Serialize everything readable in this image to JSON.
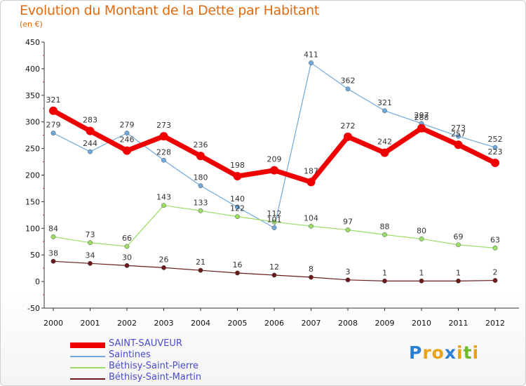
{
  "title": "Evolution du Montant de la Dette par Habitant",
  "subtitle": "(en €)",
  "logo": {
    "letters": [
      "P",
      "r",
      "o",
      "x",
      "i",
      "t",
      "i"
    ],
    "colors": [
      "#2a7fd4",
      "#e8a21a",
      "#e8a21a",
      "#2a7fd4",
      "#e8a21a",
      "#6cbb2a",
      "#e8a21a"
    ]
  },
  "chart_data": {
    "type": "line",
    "title": "Evolution du Montant de la Dette par Habitant",
    "ylabel": "(en €)",
    "x": [
      "2000",
      "2001",
      "2002",
      "2003",
      "2004",
      "2005",
      "2006",
      "2007",
      "2008",
      "2009",
      "2010",
      "2011",
      "2012"
    ],
    "ylim": [
      -50,
      450
    ],
    "yticks": [
      "-50",
      "0",
      "50",
      "100",
      "150",
      "200",
      "250",
      "300",
      "350",
      "400",
      "450"
    ],
    "grid": false,
    "legend_position": "bottom-left",
    "series": [
      {
        "name": "SAINT-SAUVEUR",
        "color": "#ee0000",
        "width": 7,
        "values": [
          321,
          283,
          246,
          273,
          236,
          198,
          209,
          187,
          272,
          242,
          288,
          257,
          223
        ],
        "labels": [
          "321",
          "283",
          "246",
          "273",
          "236",
          "198",
          "209",
          "187",
          "272",
          "242",
          "288",
          "257",
          "223"
        ]
      },
      {
        "name": "Saintines",
        "color": "#6fa8dc",
        "width": 1.2,
        "values": [
          279,
          244,
          279,
          228,
          180,
          140,
          101,
          411,
          362,
          321,
          297,
          273,
          252
        ],
        "labels": [
          "279",
          "244",
          "279",
          "228",
          "180",
          "140",
          "101",
          "411",
          "362",
          "321",
          "297",
          "273",
          "252"
        ]
      },
      {
        "name": "Béthisy-Saint-Pierre",
        "color": "#99dd66",
        "width": 1.2,
        "values": [
          84,
          73,
          66,
          143,
          133,
          122,
          112,
          104,
          97,
          88,
          80,
          69,
          63
        ],
        "labels": [
          "84",
          "73",
          "66",
          "143",
          "133",
          "122",
          "112",
          "104",
          "97",
          "88",
          "80",
          "69",
          "63"
        ]
      },
      {
        "name": "Béthisy-Saint-Martin",
        "color": "#6b1a1a",
        "width": 1.2,
        "values": [
          38,
          34,
          30,
          26,
          21,
          16,
          12,
          8,
          3,
          1,
          1,
          1,
          2
        ],
        "labels": [
          "38",
          "34",
          "30",
          "26",
          "21",
          "16",
          "12",
          "8",
          "3",
          "1",
          "1",
          "1",
          "2"
        ]
      }
    ]
  }
}
